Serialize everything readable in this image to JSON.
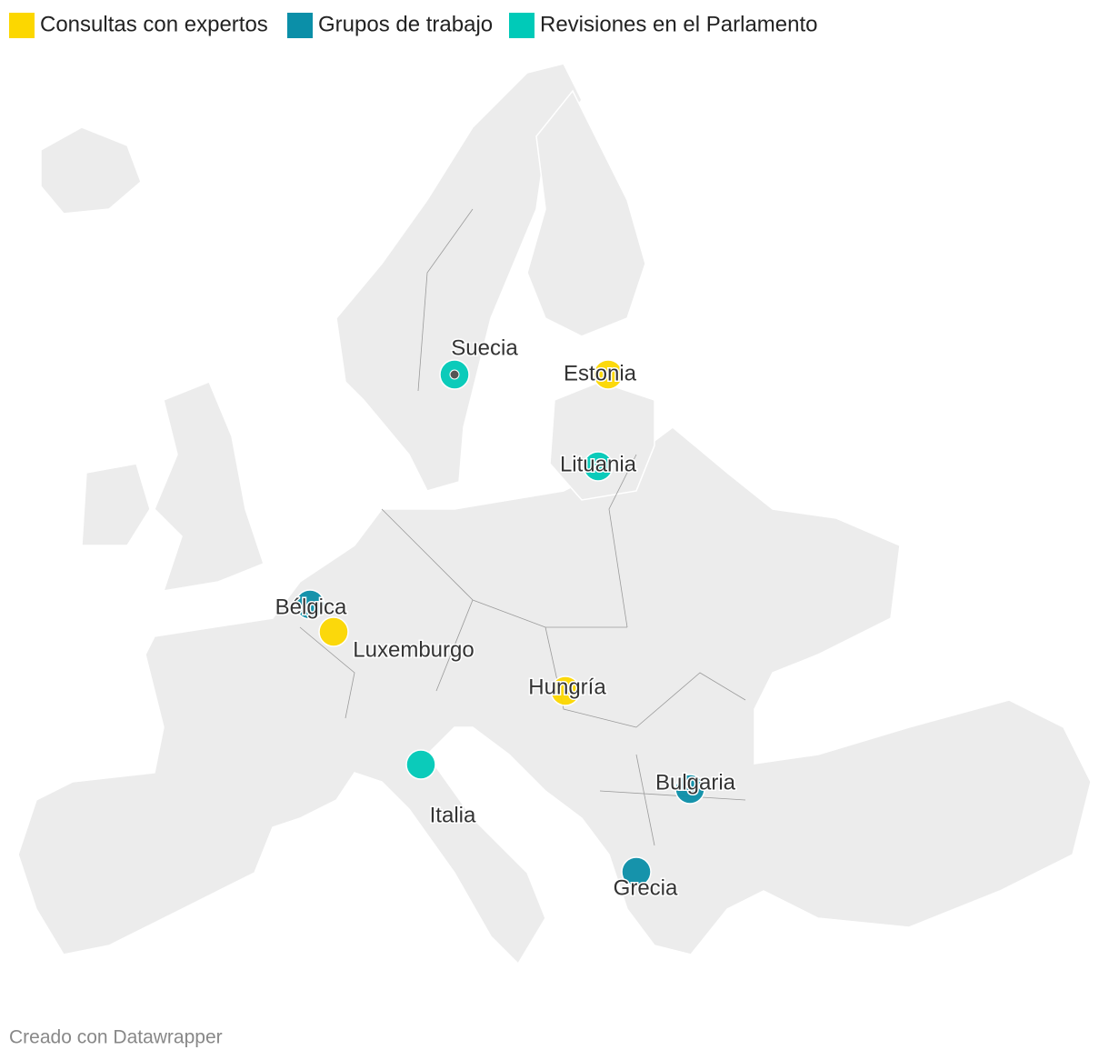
{
  "legend": [
    {
      "label": "Consultas con expertos",
      "color": "#fcd700"
    },
    {
      "label": "Grupos de trabajo",
      "color": "#0b8fa8"
    },
    {
      "label": "Revisiones en el Parlamento",
      "color": "#00cab8"
    }
  ],
  "markers": [
    {
      "label": "Suecia",
      "color": "#00cab8"
    },
    {
      "label": "Estonia",
      "color": "#fcd700"
    },
    {
      "label": "Lituania",
      "color": "#00cab8"
    },
    {
      "label": "Bélgica",
      "color": "#0b8fa8"
    },
    {
      "label": "Luxemburgo",
      "color": "#fcd700"
    },
    {
      "label": "Hungría",
      "color": "#fcd700"
    },
    {
      "label": "Italia",
      "color": "#00cab8"
    },
    {
      "label": "Bulgaria",
      "color": "#0b8fa8"
    },
    {
      "label": "Grecia",
      "color": "#0b8fa8"
    }
  ],
  "footer": "Creado con Datawrapper"
}
